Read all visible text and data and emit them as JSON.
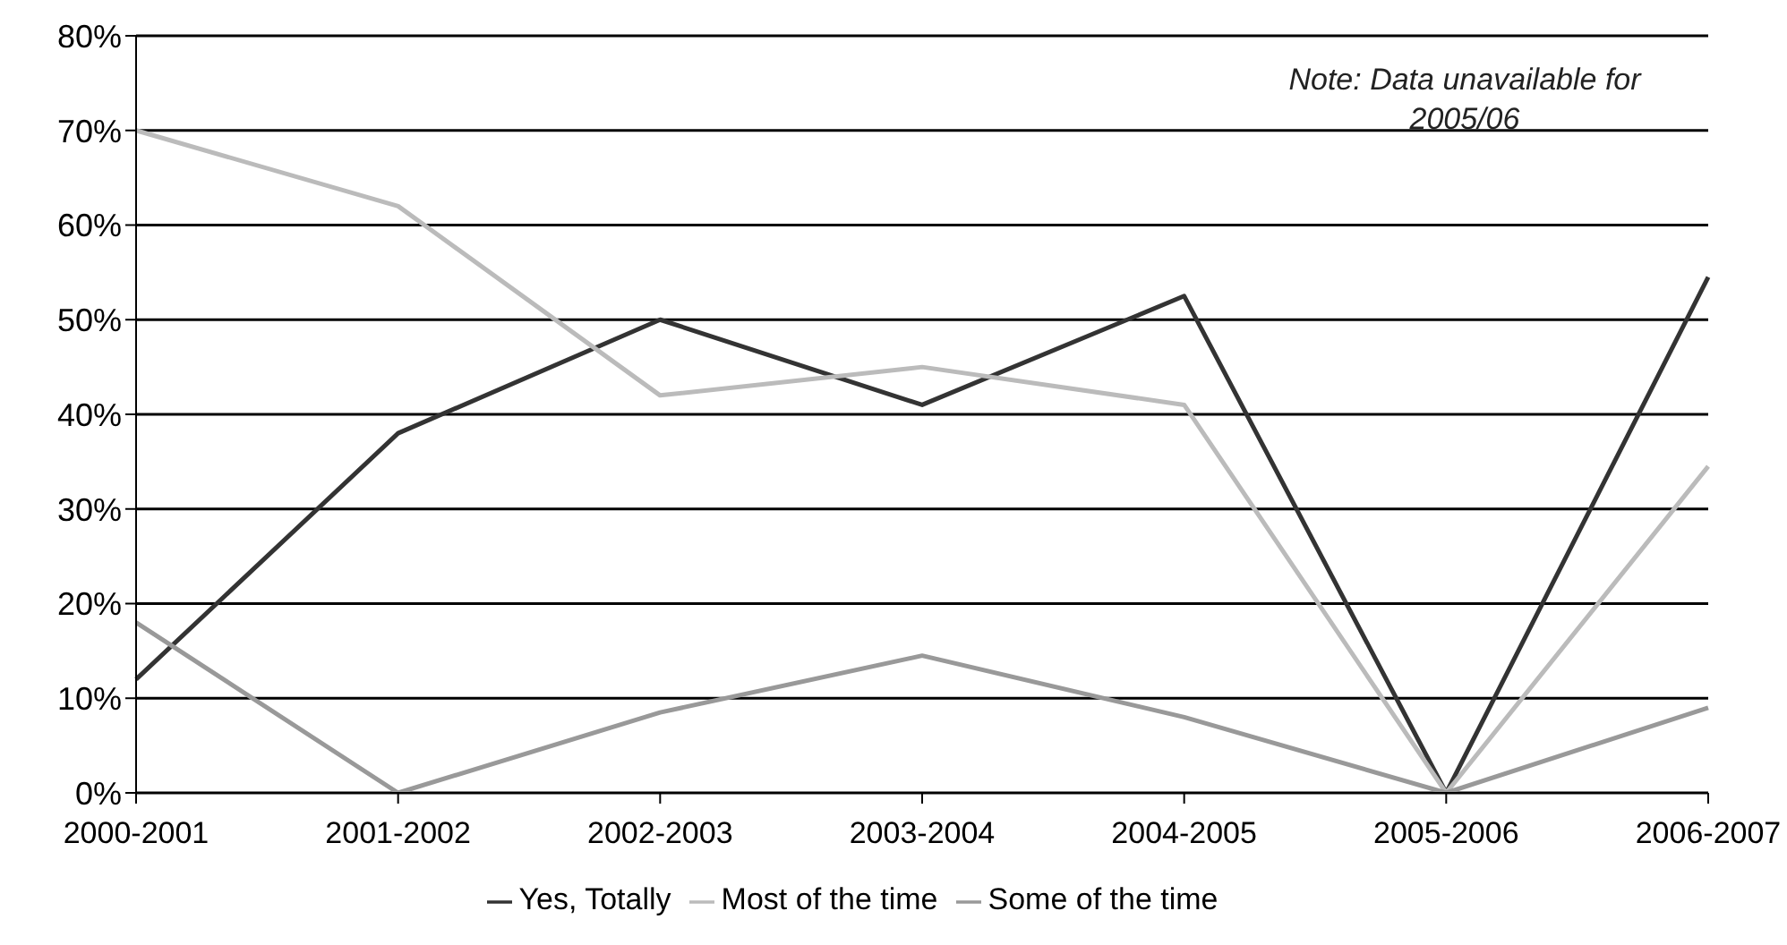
{
  "chart_data": {
    "type": "line",
    "categories": [
      "2000-2001",
      "2001-2002",
      "2002-2003",
      "2003-2004",
      "2004-2005",
      "2005-2006",
      "2006-2007"
    ],
    "series": [
      {
        "name": "Yes, Totally",
        "color": "#333333",
        "values": [
          12,
          38,
          50,
          41,
          52.5,
          0,
          54.5
        ]
      },
      {
        "name": "Most of the time",
        "color": "#bbbbbb",
        "values": [
          70,
          62,
          42,
          45,
          41,
          0,
          34.5
        ]
      },
      {
        "name": "Some of the time",
        "color": "#999999",
        "values": [
          18,
          0,
          8.5,
          14.5,
          8,
          0,
          9
        ]
      }
    ],
    "ylim": [
      0,
      80
    ],
    "yticks": [
      {
        "value": 0,
        "label": "0%"
      },
      {
        "value": 10,
        "label": "10%"
      },
      {
        "value": 20,
        "label": "20%"
      },
      {
        "value": 30,
        "label": "30%"
      },
      {
        "value": 40,
        "label": "40%"
      },
      {
        "value": 50,
        "label": "50%"
      },
      {
        "value": 60,
        "label": "60%"
      },
      {
        "value": 70,
        "label": "70%"
      },
      {
        "value": 80,
        "label": "80%"
      }
    ],
    "grid": "y",
    "legend": "bottom",
    "marker": "none",
    "line_style": "solid",
    "annotations": [
      "Note: Data unavailable for 2005/06"
    ]
  }
}
